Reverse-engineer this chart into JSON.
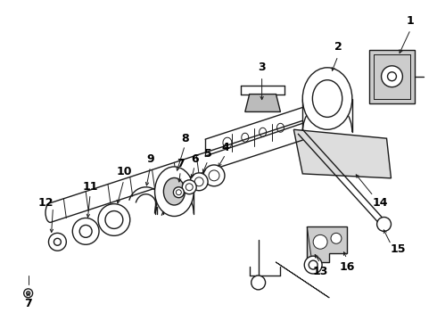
{
  "background_color": "#ffffff",
  "line_color": "#1a1a1a",
  "label_color": "#000000",
  "fig_width": 4.9,
  "fig_height": 3.6,
  "dpi": 100,
  "fontsize": 9
}
